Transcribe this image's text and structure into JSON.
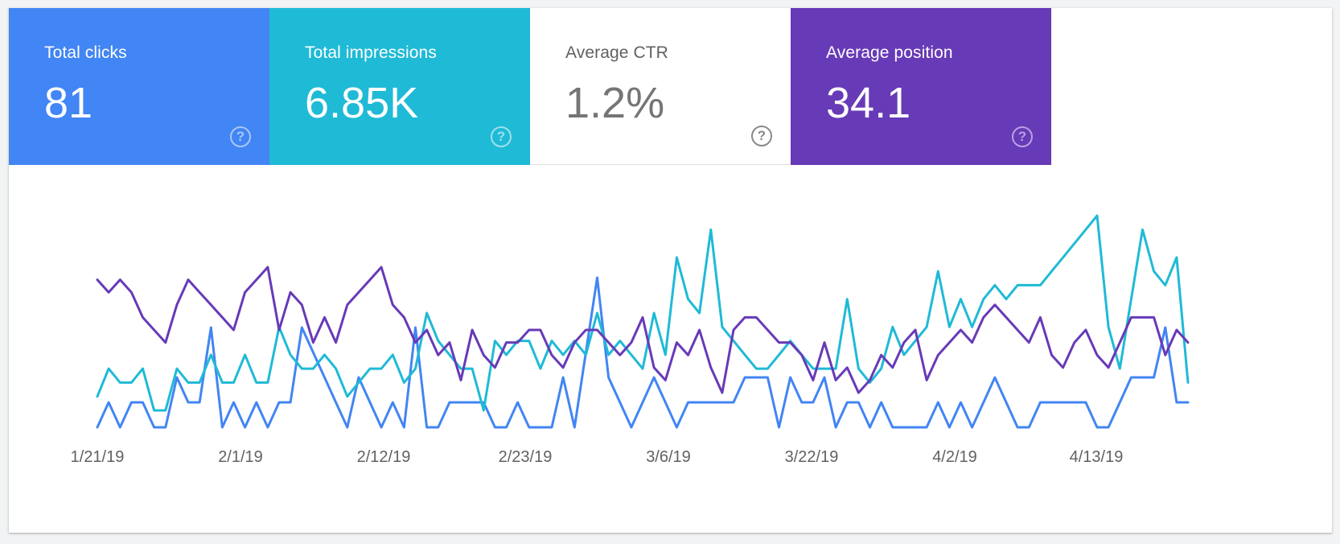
{
  "metrics": [
    {
      "key": "clicks",
      "label": "Total clicks",
      "value": "81",
      "color": "#4285f4",
      "selected": true
    },
    {
      "key": "impressions",
      "label": "Total impressions",
      "value": "6.85K",
      "color": "#1fbad6",
      "selected": true
    },
    {
      "key": "ctr",
      "label": "Average CTR",
      "value": "1.2%",
      "color": "#ffffff",
      "selected": false
    },
    {
      "key": "position",
      "label": "Average position",
      "value": "34.1",
      "color": "#673ab7",
      "selected": true
    }
  ],
  "help_icon": "help-circle-icon",
  "chart_data": {
    "type": "line",
    "x_tick_labels": [
      "1/21/19",
      "2/1/19",
      "2/12/19",
      "2/23/19",
      "3/6/19",
      "3/22/19",
      "4/2/19",
      "4/13/19"
    ],
    "series": [
      {
        "name": "Total clicks",
        "color": "#4285f4",
        "values": [
          0,
          1,
          0,
          1,
          1,
          0,
          0,
          2,
          1,
          1,
          4,
          0,
          1,
          0,
          1,
          0,
          1,
          1,
          4,
          3,
          2,
          1,
          0,
          2,
          1,
          0,
          1,
          0,
          4,
          0,
          0,
          1,
          1,
          1,
          1,
          0,
          0,
          1,
          0,
          0,
          0,
          2,
          0,
          3,
          6,
          2,
          1,
          0,
          1,
          2,
          1,
          0,
          1,
          1,
          1,
          1,
          1,
          2,
          2,
          2,
          0,
          2,
          1,
          1,
          2,
          0,
          1,
          1,
          0,
          1,
          0,
          0,
          0,
          0,
          1,
          0,
          1,
          0,
          1,
          2,
          1,
          0,
          0,
          1,
          1,
          1,
          1,
          1,
          0,
          0,
          1,
          2,
          2,
          2,
          4,
          1,
          1
        ]
      },
      {
        "name": "Total impressions",
        "color": "#1fbad6",
        "values": [
          0,
          2,
          1,
          1,
          2,
          -1,
          -1,
          2,
          1,
          1,
          3,
          1,
          1,
          3,
          1,
          1,
          5,
          3,
          2,
          2,
          3,
          2,
          0,
          1,
          2,
          2,
          3,
          1,
          2,
          6,
          4,
          3,
          2,
          2,
          -1,
          4,
          3,
          4,
          4,
          2,
          4,
          3,
          4,
          3,
          6,
          3,
          4,
          3,
          2,
          6,
          3,
          10,
          7,
          6,
          12,
          5,
          4,
          3,
          2,
          2,
          3,
          4,
          3,
          2,
          2,
          2,
          7,
          2,
          1,
          2,
          5,
          3,
          4,
          5,
          9,
          5,
          7,
          5,
          7,
          8,
          7,
          8,
          8,
          8,
          9,
          10,
          11,
          12,
          13,
          5,
          2,
          7,
          12,
          9,
          8,
          10,
          1
        ]
      },
      {
        "name": "Average position",
        "color": "#673ab7",
        "values": [
          37,
          38,
          37,
          38,
          40,
          41,
          42,
          39,
          37,
          38,
          39,
          40,
          41,
          38,
          37,
          36,
          41,
          38,
          39,
          42,
          40,
          42,
          39,
          38,
          37,
          36,
          39,
          40,
          42,
          41,
          43,
          42,
          45,
          41,
          43,
          44,
          42,
          42,
          41,
          41,
          43,
          44,
          42,
          41,
          41,
          42,
          43,
          42,
          40,
          44,
          45,
          42,
          43,
          41,
          44,
          46,
          41,
          40,
          40,
          41,
          42,
          42,
          43,
          45,
          42,
          45,
          44,
          46,
          45,
          43,
          44,
          42,
          41,
          45,
          43,
          42,
          41,
          42,
          40,
          39,
          40,
          41,
          42,
          40,
          43,
          44,
          42,
          41,
          43,
          44,
          42,
          40,
          40,
          40,
          43,
          41,
          42
        ]
      }
    ]
  }
}
